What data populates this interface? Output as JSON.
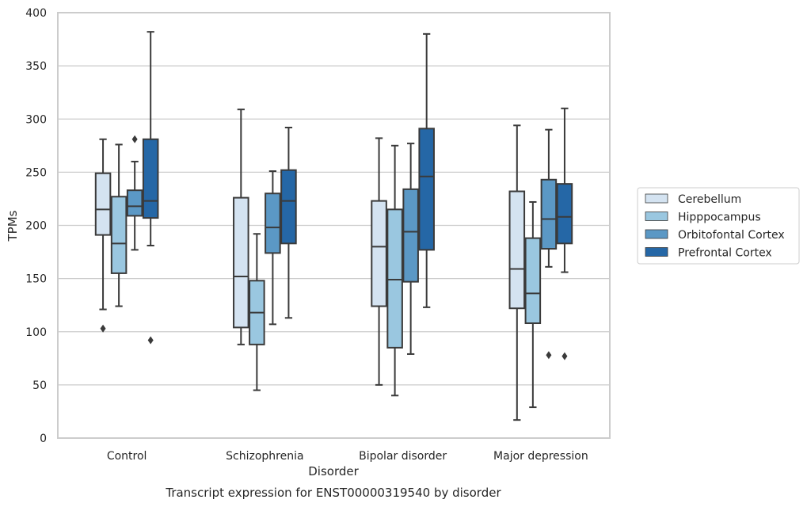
{
  "chart_data": {
    "type": "boxplot",
    "caption": "Transcript expression for ENST00000319540 by disorder",
    "xlabel": "Disorder",
    "ylabel": "TPMs",
    "ylim": [
      0,
      400
    ],
    "yticks": [
      0,
      50,
      100,
      150,
      200,
      250,
      300,
      350,
      400
    ],
    "grid": "horizontal",
    "legend_position": "right",
    "categories": [
      "Control",
      "Schizophrenia",
      "Bipolar disorder",
      "Major depression"
    ],
    "series": [
      {
        "name": "Cerebellum",
        "color": "#d4e3f1",
        "boxes": [
          {
            "whisker_low": 121,
            "q1": 191,
            "median": 215,
            "q3": 249,
            "whisker_high": 281,
            "outliers": [
              103
            ]
          },
          {
            "whisker_low": 88,
            "q1": 104,
            "median": 152,
            "q3": 226,
            "whisker_high": 309,
            "outliers": []
          },
          {
            "whisker_low": 50,
            "q1": 124,
            "median": 180,
            "q3": 223,
            "whisker_high": 282,
            "outliers": []
          },
          {
            "whisker_low": 17,
            "q1": 122,
            "median": 159,
            "q3": 232,
            "whisker_high": 294,
            "outliers": []
          }
        ]
      },
      {
        "name": "Hipppocampus",
        "color": "#9ac7e0",
        "boxes": [
          {
            "whisker_low": 124,
            "q1": 155,
            "median": 183,
            "q3": 227,
            "whisker_high": 276,
            "outliers": []
          },
          {
            "whisker_low": 45,
            "q1": 88,
            "median": 118,
            "q3": 148,
            "whisker_high": 192,
            "outliers": []
          },
          {
            "whisker_low": 40,
            "q1": 85,
            "median": 149,
            "q3": 215,
            "whisker_high": 275,
            "outliers": []
          },
          {
            "whisker_low": 29,
            "q1": 108,
            "median": 136,
            "q3": 188,
            "whisker_high": 222,
            "outliers": []
          }
        ]
      },
      {
        "name": "Orbitofontal Cortex",
        "color": "#5b98c5",
        "boxes": [
          {
            "whisker_low": 177,
            "q1": 209,
            "median": 218,
            "q3": 233,
            "whisker_high": 260,
            "outliers": [
              281
            ]
          },
          {
            "whisker_low": 107,
            "q1": 174,
            "median": 198,
            "q3": 230,
            "whisker_high": 251,
            "outliers": []
          },
          {
            "whisker_low": 79,
            "q1": 147,
            "median": 194,
            "q3": 234,
            "whisker_high": 277,
            "outliers": []
          },
          {
            "whisker_low": 161,
            "q1": 178,
            "median": 206,
            "q3": 243,
            "whisker_high": 290,
            "outliers": [
              78
            ]
          }
        ]
      },
      {
        "name": "Prefrontal Cortex",
        "color": "#2567a6",
        "boxes": [
          {
            "whisker_low": 181,
            "q1": 207,
            "median": 223,
            "q3": 281,
            "whisker_high": 382,
            "outliers": [
              92
            ]
          },
          {
            "whisker_low": 113,
            "q1": 183,
            "median": 223,
            "q3": 252,
            "whisker_high": 292,
            "outliers": []
          },
          {
            "whisker_low": 123,
            "q1": 177,
            "median": 246,
            "q3": 291,
            "whisker_high": 380,
            "outliers": []
          },
          {
            "whisker_low": 156,
            "q1": 183,
            "median": 208,
            "q3": 239,
            "whisker_high": 310,
            "outliers": [
              77
            ]
          }
        ]
      }
    ]
  }
}
